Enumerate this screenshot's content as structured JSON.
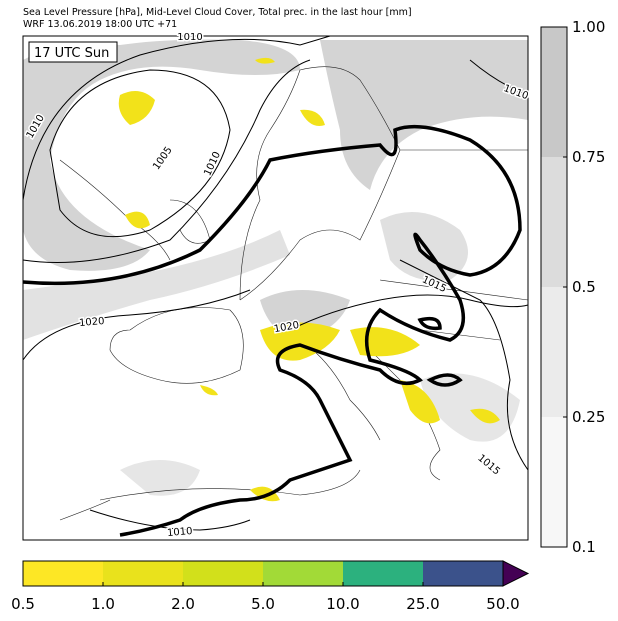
{
  "header": {
    "line1": "Sea Level Pressure [hPa], Mid-Level Cloud Cover, Total prec. in the last hour [mm]",
    "line2": "WRF 13.06.2019 18:00 UTC +71"
  },
  "map": {
    "time_label": "17 UTC Sun",
    "contour_labels": [
      1010,
      1010,
      1005,
      1010,
      1010,
      1015,
      1020,
      1020,
      1010,
      1015
    ]
  },
  "cloud_colorbar": {
    "colors": [
      "#c8c8c8",
      "#dcdcdc",
      "#ebebeb",
      "#f7f7f7"
    ],
    "ticks": [
      {
        "value": 1,
        "label": "1.00"
      },
      0.75,
      0.5,
      0.25,
      0.1
    ]
  },
  "precip_colorbar": {
    "colors": [
      "#fde725",
      "#e9e21c",
      "#d2e01b",
      "#a2da37",
      "#2cb17e",
      "#3b528b",
      "#440154"
    ],
    "ticks": [
      0.5,
      {
        "value": 1,
        "label": "1.0"
      },
      {
        "value": 2,
        "label": "2.0"
      },
      {
        "value": 5,
        "label": "5.0"
      },
      {
        "value": 10,
        "label": "10.0"
      },
      {
        "value": 25,
        "label": "25.0"
      },
      {
        "value": 50,
        "label": "50.0"
      }
    ]
  }
}
